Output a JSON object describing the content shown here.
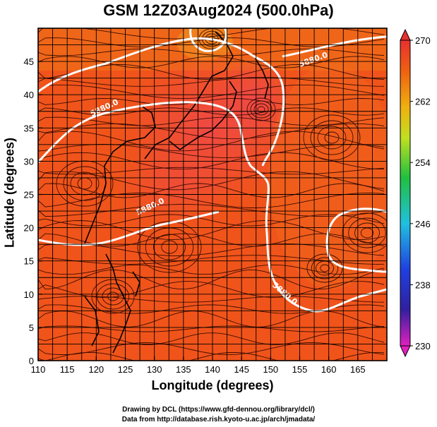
{
  "title": "GSM 12Z03Aug2024 (500.0hPa)",
  "axes": {
    "xlabel": "Longitude (degrees)",
    "ylabel": "Latitude (degrees)",
    "xlim": [
      110,
      170
    ],
    "ylim": [
      0,
      50
    ],
    "xticks": [
      "110",
      "115",
      "120",
      "125",
      "130",
      "135",
      "140",
      "145",
      "150",
      "155",
      "160",
      "165"
    ],
    "yticks": [
      "0",
      "5",
      "10",
      "15",
      "20",
      "25",
      "30",
      "35",
      "40",
      "45"
    ],
    "grid": true
  },
  "colorbar": {
    "range": [
      230,
      270
    ],
    "labels": [
      "270",
      "262",
      "254",
      "246",
      "238",
      "230"
    ]
  },
  "contours": {
    "label": "5880.0",
    "color": "#ffffff"
  },
  "credits": {
    "line1": "Drawing by DCL (https://www.gfd-dennou.org/library/dcl/)",
    "line2": "Data from http://database.rish.kyoto-u.ac.jp/arch/jmadata/"
  },
  "chart_data": {
    "type": "heatmap",
    "title": "GSM 12Z03Aug2024 (500.0hPa)",
    "xlabel": "Longitude (degrees)",
    "ylabel": "Latitude (degrees)",
    "xlim": [
      110,
      170
    ],
    "ylim": [
      0,
      50
    ],
    "colorbar_range": [
      230,
      270
    ],
    "contour_label": "5880.0"
  }
}
